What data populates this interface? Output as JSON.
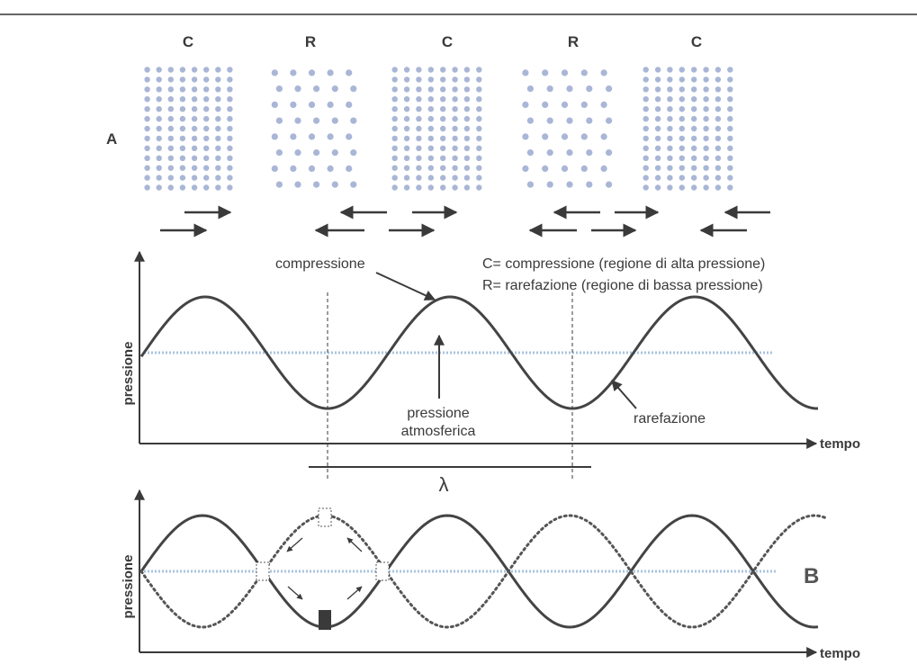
{
  "panel_a": {
    "label": "A",
    "regions": [
      {
        "label": "C",
        "kind": "compressione"
      },
      {
        "label": "R",
        "kind": "rarefazione"
      },
      {
        "label": "C",
        "kind": "compressione"
      },
      {
        "label": "R",
        "kind": "rarefazione"
      },
      {
        "label": "C",
        "kind": "compressione"
      }
    ]
  },
  "legend": {
    "line1": "C= compressione (regione di alta pressione)",
    "line2": "R= rarefazione (regione di bassa pressione)"
  },
  "panel_top": {
    "y_axis_label": "pressione",
    "x_axis_label": "tempo",
    "annotation_compression": "compressione",
    "annotation_atm_1": "pressione",
    "annotation_atm_2": "atmosferica",
    "annotation_rarefaction": "rarefazione",
    "wavelength_symbol": "λ"
  },
  "panel_bottom": {
    "label": "B",
    "y_axis_label": "pressione",
    "x_axis_label": "tempo"
  },
  "colors": {
    "ink": "#3a3a3a",
    "particle": "#a9b6d6",
    "dotted_line": "#a9c4de"
  }
}
